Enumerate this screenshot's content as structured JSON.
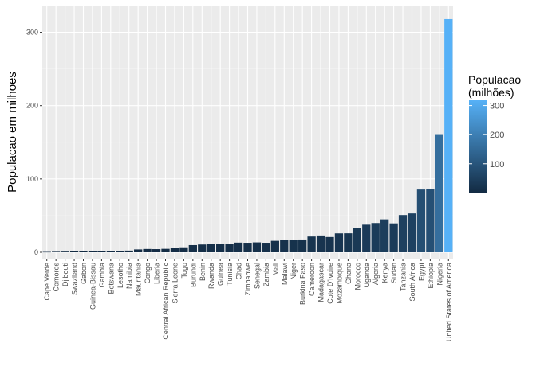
{
  "chart_data": {
    "type": "bar",
    "ylabel": "Populacao em milhoes",
    "xlabel": "",
    "ylim": [
      0,
      335
    ],
    "yticks": [
      0,
      100,
      200,
      300
    ],
    "grid": true,
    "legend": {
      "position": "right",
      "title_lines": [
        "Populacao",
        "(milhões)"
      ],
      "ticks": [
        100,
        200,
        300
      ],
      "range": [
        1,
        318
      ],
      "color_low": "#132b43",
      "color_high": "#56b1f7"
    },
    "categories": [
      "Cape Verde",
      "Comoros",
      "Djibouti",
      "Swaziland",
      "Gabon",
      "Guinea-Bissau",
      "Gambia",
      "Botswana",
      "Lesotho",
      "Namibia",
      "Mauritania",
      "Congo",
      "Liberia",
      "Central African Republic",
      "Sierra Leone",
      "Togo",
      "Burundi",
      "Benin",
      "Rwanda",
      "Guinea",
      "Tunisia",
      "Chad",
      "Zimbabwe",
      "Senegal",
      "Zambia",
      "Mali",
      "Malawi",
      "Niger",
      "Burkina Faso",
      "Cameroon",
      "Madagascar",
      "Cote D'Ivoire",
      "Mozambique",
      "Ghana",
      "Morocco",
      "Uganda",
      "Algeria",
      "Kenya",
      "Sudan",
      "Tanzania",
      "South Africa",
      "Egypt",
      "Ethiopia",
      "Nigeria",
      "United States of America"
    ],
    "values": [
      0.5,
      0.7,
      0.9,
      1.2,
      1.7,
      1.8,
      1.9,
      2.0,
      2.1,
      2.3,
      3.9,
      4.5,
      4.3,
      4.7,
      6.1,
      6.8,
      9.8,
      10.6,
      11.3,
      11.5,
      11.0,
      13.2,
      13.0,
      13.5,
      13.0,
      15.6,
      16.3,
      17.1,
      17.4,
      21.5,
      22.9,
      20.8,
      25.8,
      25.9,
      33.0,
      37.6,
      39.9,
      44.9,
      39.4,
      50.8,
      53.0,
      85.6,
      86.6,
      160.0,
      318.0
    ]
  },
  "colors": {
    "panel_bg": "#ebebeb",
    "grid_major": "#ffffff",
    "grid_minor": "#f5f5f5"
  }
}
